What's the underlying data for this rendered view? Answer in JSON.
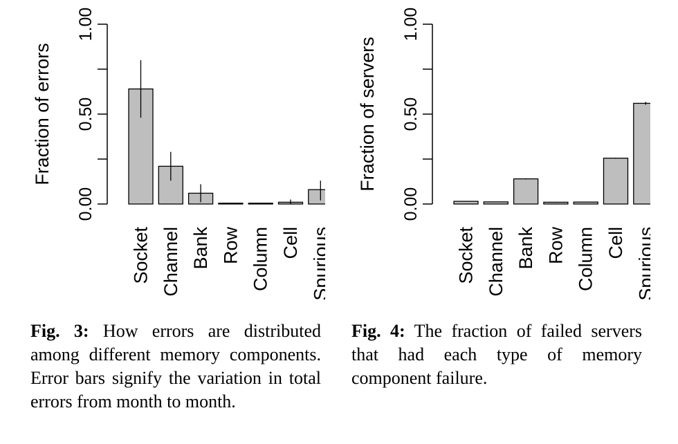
{
  "chart_data": [
    {
      "type": "bar",
      "categories": [
        "Socket",
        "Channel",
        "Bank",
        "Row",
        "Column",
        "Cell",
        "Spurious"
      ],
      "values": [
        0.64,
        0.21,
        0.06,
        0.003,
        0.002,
        0.01,
        0.08
      ],
      "error_bars": [
        [
          0.48,
          0.8
        ],
        [
          0.13,
          0.29
        ],
        [
          0.01,
          0.11
        ],
        [
          0.0,
          0.006
        ],
        [
          0.0,
          0.004
        ],
        [
          0.0,
          0.025
        ],
        [
          0.02,
          0.13
        ]
      ],
      "ylabel": "Fraction of errors",
      "yticks": [
        "0.00",
        "0.50",
        "1.00"
      ],
      "ylim": [
        0,
        1
      ],
      "bar_color": "#bebebe"
    },
    {
      "type": "bar",
      "categories": [
        "Socket",
        "Channel",
        "Bank",
        "Row",
        "Column",
        "Cell",
        "Spurious"
      ],
      "values": [
        0.015,
        0.012,
        0.14,
        0.01,
        0.011,
        0.255,
        0.56
      ],
      "error_bars": [
        [
          0.013,
          0.017
        ],
        [
          0.01,
          0.014
        ],
        [
          0.137,
          0.143
        ],
        [
          0.008,
          0.012
        ],
        [
          0.009,
          0.013
        ],
        [
          0.252,
          0.258
        ],
        [
          0.552,
          0.568
        ]
      ],
      "ylabel": "Fraction of servers",
      "yticks": [
        "0.00",
        "0.50",
        "1.00"
      ],
      "ylim": [
        0,
        1
      ],
      "bar_color": "#bebebe"
    }
  ],
  "captions": [
    {
      "label": "Fig. 3:",
      "text": " How errors are distributed among different memory components. Error bars signify the variation in total errors from month to month."
    },
    {
      "label": "Fig. 4:",
      "text": " The fraction of failed servers that had each type of memory component failure."
    }
  ]
}
